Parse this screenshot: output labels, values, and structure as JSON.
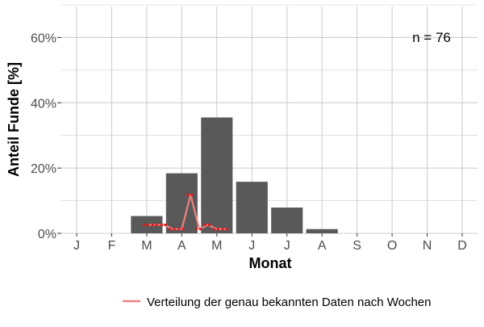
{
  "chart_data": {
    "type": "bar",
    "categories": [
      "J",
      "F",
      "M",
      "A",
      "M",
      "J",
      "J",
      "A",
      "S",
      "O",
      "N",
      "D"
    ],
    "values": [
      0,
      0,
      5.3,
      18.4,
      35.5,
      15.8,
      7.9,
      1.3,
      0,
      0,
      0,
      0
    ],
    "xlabel": "Monat",
    "ylabel": "Anteil Funde [%]",
    "ylim": [
      0,
      70
    ],
    "yticks": [
      0,
      20,
      40,
      60
    ],
    "ytick_labels": [
      "0%",
      "20%",
      "40%",
      "60%"
    ],
    "grid": true,
    "annotation": "n = 76",
    "line_series": {
      "name": "Verteilung der genau bekannten Daten nach Wochen",
      "x": [
        3.0,
        3.25,
        3.5,
        3.75,
        4.0,
        4.25,
        4.5,
        4.75,
        5.0,
        5.25
      ],
      "y": [
        2.6,
        2.6,
        2.6,
        1.3,
        1.3,
        11.8,
        1.3,
        2.6,
        1.3,
        1.3
      ],
      "color": "#f08080",
      "point_color": "#e41a1c"
    },
    "legend": {
      "position": "bottom"
    },
    "bar_color": "#595959"
  }
}
